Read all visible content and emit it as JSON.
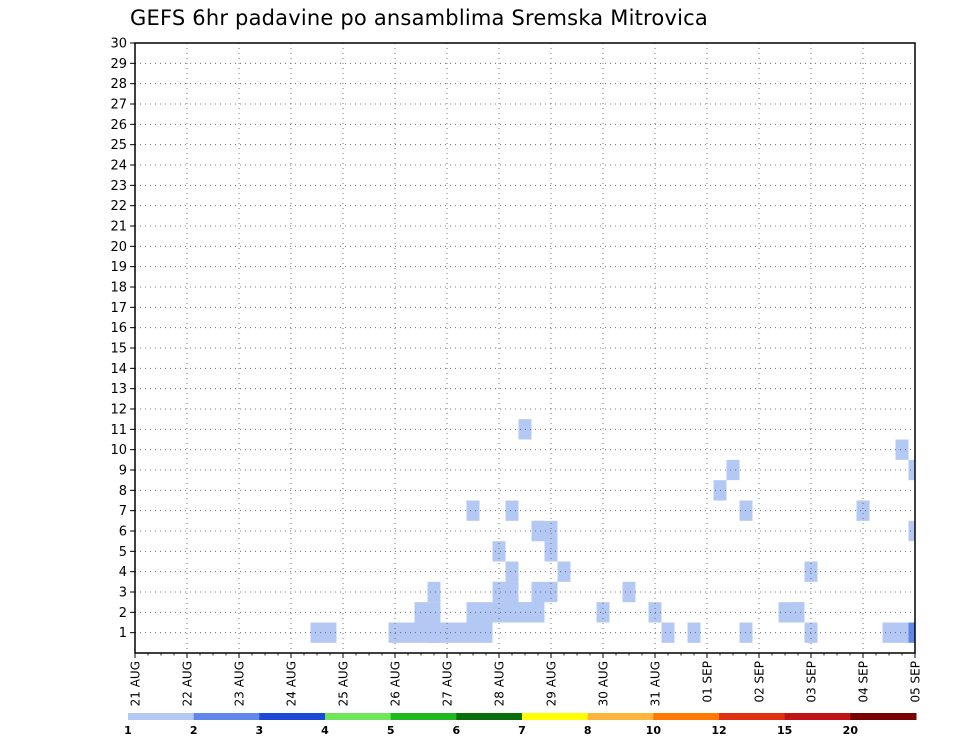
{
  "chart_data": {
    "type": "heatmap",
    "title": "GEFS 6hr padavine po ansamblima Sremska Mitrovica",
    "x_unit": "days since 21 AUG (6-hour steps, 0.25 day)",
    "x_labels": [
      "21 AUG",
      "22 AUG",
      "23 AUG",
      "24 AUG",
      "25 AUG",
      "26 AUG",
      "27 AUG",
      "28 AUG",
      "29 AUG",
      "30 AUG",
      "31 AUG",
      "01 SEP",
      "02 SEP",
      "03 SEP",
      "04 SEP",
      "05 SEP"
    ],
    "y_labels": [
      1,
      2,
      3,
      4,
      5,
      6,
      7,
      8,
      9,
      10,
      11,
      12,
      13,
      14,
      15,
      16,
      17,
      18,
      19,
      20,
      21,
      22,
      23,
      24,
      25,
      26,
      27,
      28,
      29,
      30
    ],
    "xlim": [
      0,
      15
    ],
    "ylim": [
      0,
      30
    ],
    "grid": true,
    "colorbar": {
      "bounds": [
        1,
        2,
        3,
        4,
        5,
        6,
        7,
        8,
        10,
        12,
        15,
        20
      ],
      "labels": [
        "1",
        "2",
        "3",
        "4",
        "5",
        "6",
        "7",
        "8",
        "10",
        "12",
        "15",
        "20"
      ],
      "colors": [
        "#b4c8f4",
        "#6088e8",
        "#1c4ad6",
        "#6ee65a",
        "#20b820",
        "#0a6e0a",
        "#ffff00",
        "#ffb43c",
        "#ff7800",
        "#e03010",
        "#c01414",
        "#780000"
      ]
    },
    "cells": [
      [
        5.75,
        1,
        1
      ],
      [
        7,
        5,
        1
      ],
      [
        15,
        9,
        1
      ],
      [
        5.75,
        2,
        1
      ],
      [
        7.75,
        2,
        1
      ],
      [
        7.75,
        3,
        1
      ],
      [
        5.75,
        3,
        1
      ],
      [
        7.25,
        3,
        1
      ],
      [
        8,
        5,
        1
      ],
      [
        11.75,
        1,
        1
      ],
      [
        14,
        7,
        1
      ],
      [
        5,
        1,
        1
      ],
      [
        7.75,
        2,
        1
      ],
      [
        8.25,
        4,
        1
      ],
      [
        10.75,
        1,
        1
      ],
      [
        12.75,
        2,
        1
      ],
      [
        6.25,
        1,
        1
      ],
      [
        7.25,
        3,
        1
      ],
      [
        13,
        4,
        1
      ],
      [
        7.75,
        2,
        1
      ],
      [
        12.75,
        2,
        1
      ],
      [
        15,
        6,
        1
      ],
      [
        6.5,
        2,
        1
      ],
      [
        8,
        5,
        1
      ],
      [
        9.5,
        3,
        1
      ],
      [
        10,
        2,
        1
      ],
      [
        14.75,
        10,
        1
      ],
      [
        6.5,
        1,
        1
      ],
      [
        8,
        6,
        1
      ],
      [
        9,
        2,
        1
      ],
      [
        14.5,
        1,
        1
      ],
      [
        14.75,
        1,
        1
      ],
      [
        6.75,
        1,
        1
      ],
      [
        7,
        2,
        1
      ],
      [
        8,
        3,
        1
      ],
      [
        10.25,
        1,
        1
      ],
      [
        12.5,
        2,
        1
      ],
      [
        13,
        1,
        1
      ],
      [
        15,
        1,
        2
      ],
      [
        3.75,
        1,
        1
      ],
      [
        5.5,
        1,
        1
      ],
      [
        7.25,
        2,
        1
      ],
      [
        7.5,
        2,
        1
      ],
      [
        7.75,
        6,
        1
      ],
      [
        5.75,
        1,
        1
      ],
      [
        7.25,
        4,
        1
      ],
      [
        7.5,
        2,
        1
      ],
      [
        7.75,
        2,
        1
      ],
      [
        11.25,
        8,
        1
      ],
      [
        11.5,
        9,
        1
      ],
      [
        11.75,
        7,
        1
      ],
      [
        3.5,
        1,
        1
      ],
      [
        5.25,
        1,
        1
      ],
      [
        5.5,
        2,
        1
      ],
      [
        6.5,
        7,
        1
      ],
      [
        6.75,
        2,
        1
      ],
      [
        7,
        3,
        1
      ],
      [
        7.25,
        7,
        1
      ],
      [
        7.5,
        11,
        1
      ],
      [
        7.75,
        6,
        1
      ],
      [
        6,
        1,
        1
      ],
      [
        7,
        3,
        1
      ],
      [
        7.25,
        2,
        1
      ]
    ]
  }
}
